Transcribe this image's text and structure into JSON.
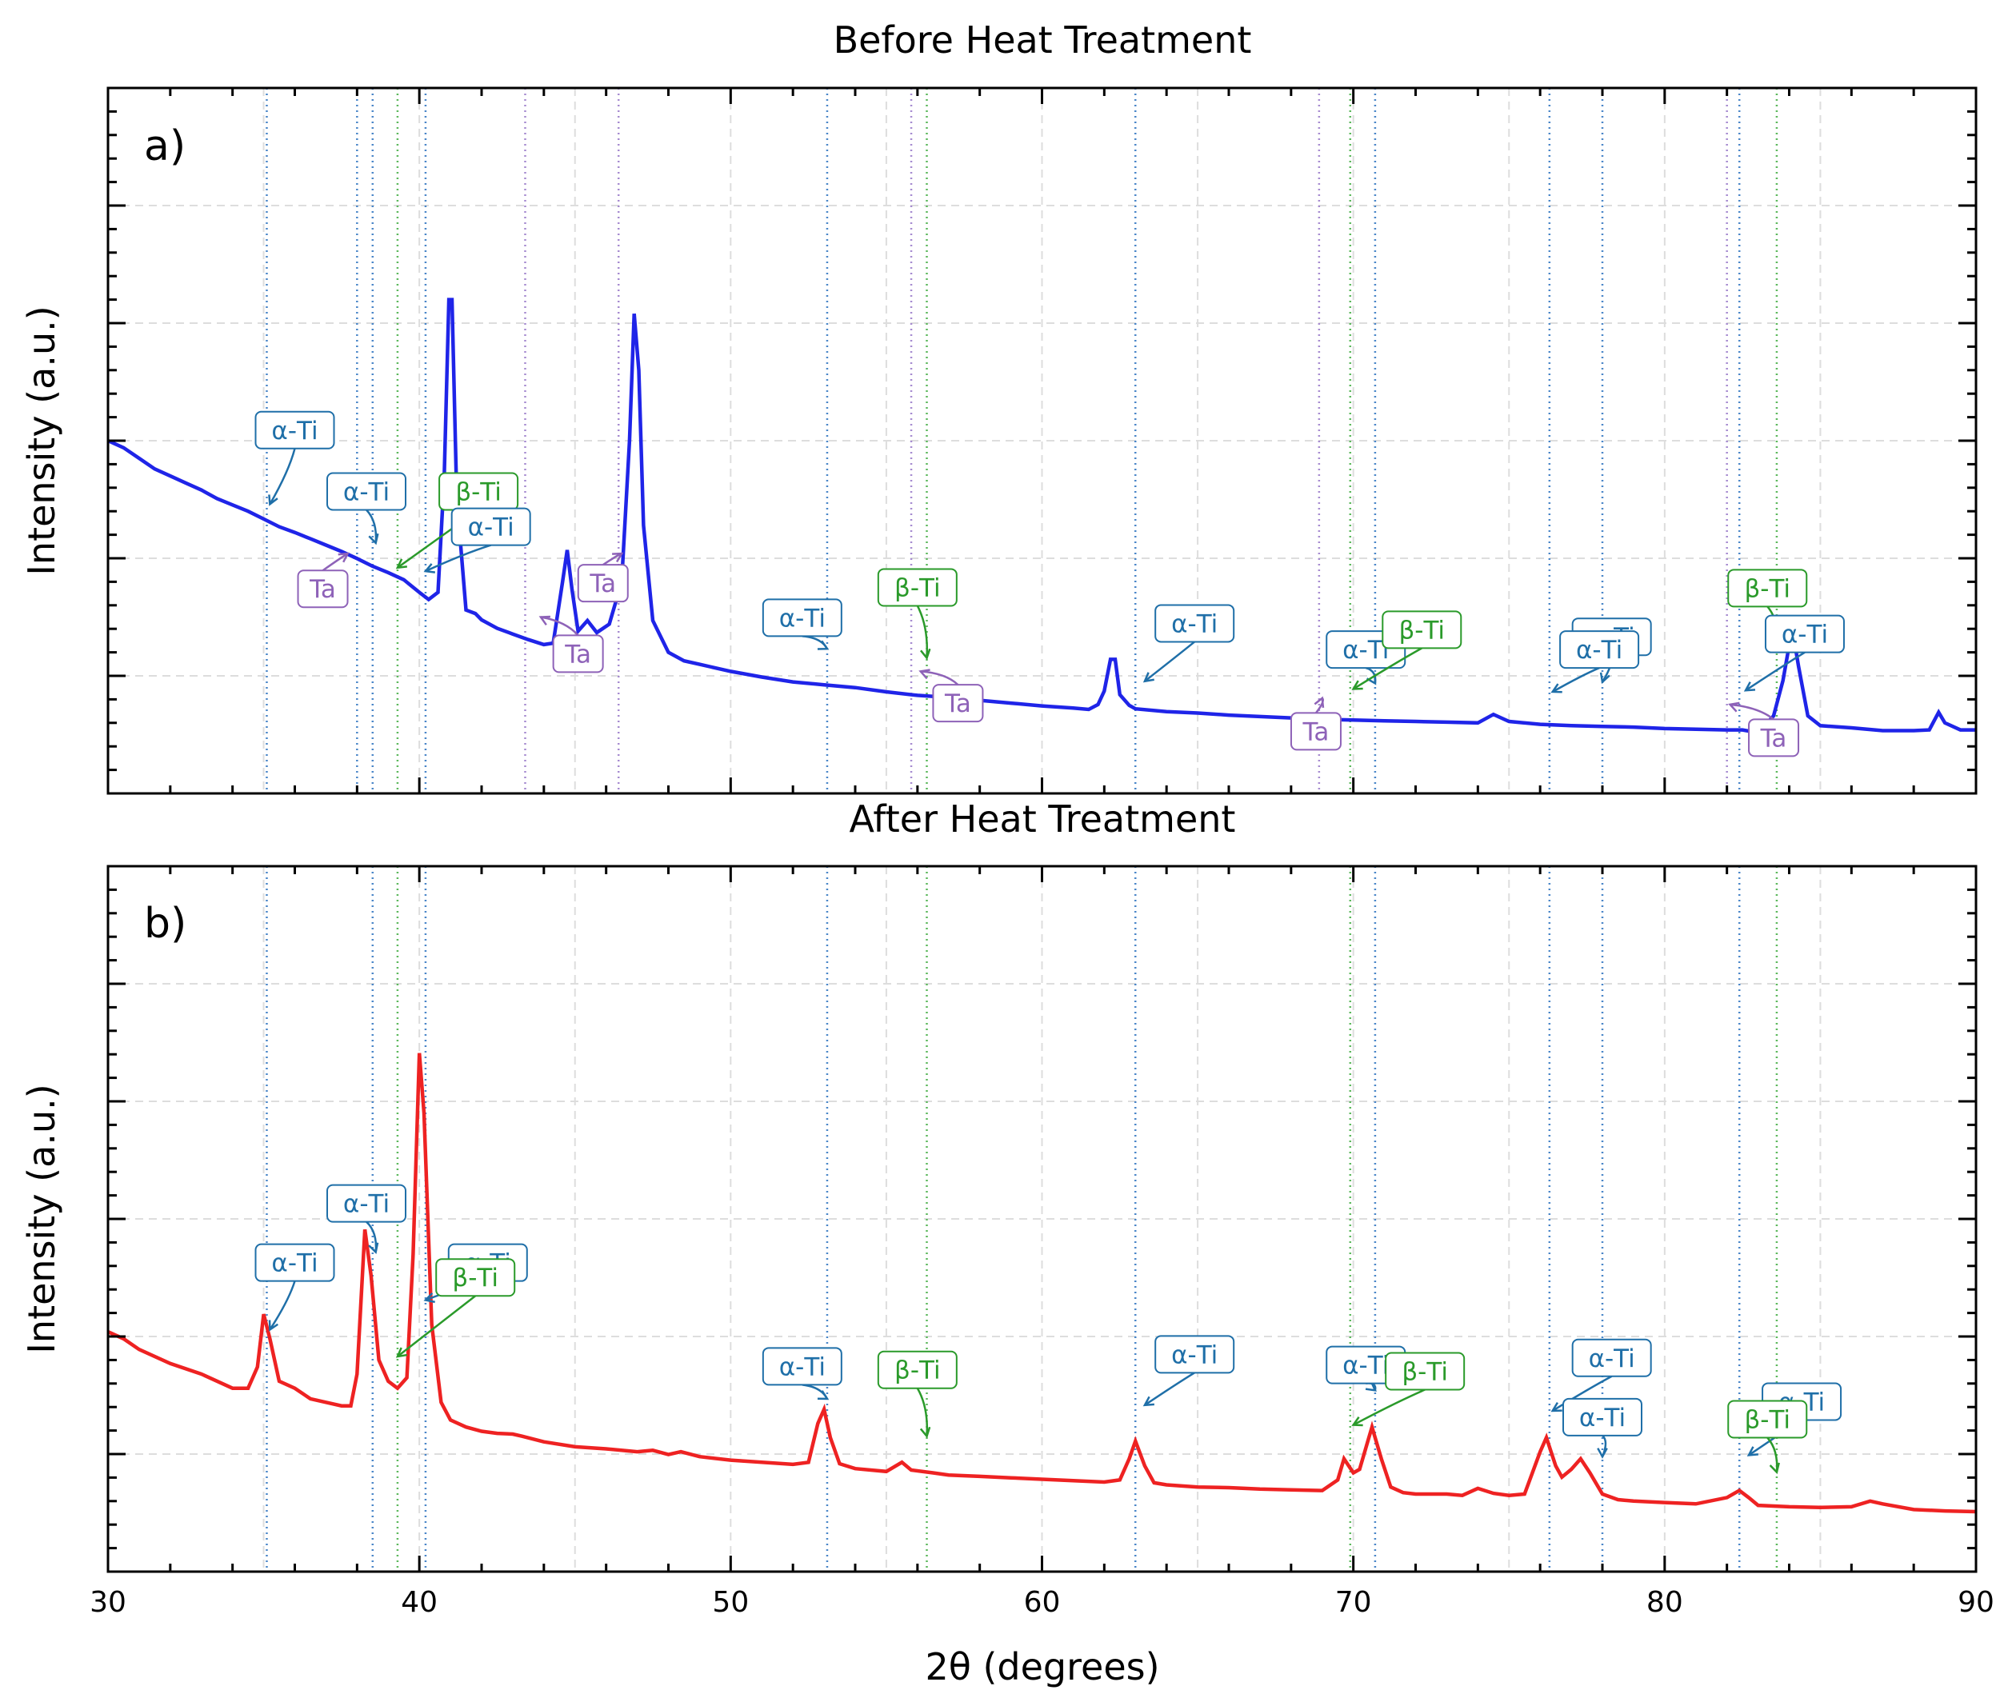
{
  "chart_data": [
    {
      "type": "line",
      "panel_label": "a)",
      "title": "Before Heat Treatment",
      "xlabel": "",
      "ylabel": "Intensity (a.u.)",
      "xlim": [
        30,
        90
      ],
      "ylim": [
        0,
        100
      ],
      "grid": true,
      "show_y_tick_labels": false,
      "show_x_tick_labels": false,
      "line_color": "#1f24e8",
      "series_points": [
        [
          30,
          50
        ],
        [
          30.5,
          49
        ],
        [
          31,
          47.5
        ],
        [
          31.5,
          46
        ],
        [
          32,
          45
        ],
        [
          32.5,
          44
        ],
        [
          33,
          43
        ],
        [
          33.5,
          41.8
        ],
        [
          34,
          40.9
        ],
        [
          34.5,
          40
        ],
        [
          35,
          38.9
        ],
        [
          35.5,
          37.8
        ],
        [
          36,
          37
        ],
        [
          36.5,
          36.1
        ],
        [
          37,
          35.2
        ],
        [
          37.5,
          34.3
        ],
        [
          38,
          33.3
        ],
        [
          38.5,
          32.2
        ],
        [
          39,
          31.3
        ],
        [
          39.5,
          30.3
        ],
        [
          40,
          28.5
        ],
        [
          40.3,
          27.5
        ],
        [
          40.6,
          28.5
        ],
        [
          40.8,
          45
        ],
        [
          40.95,
          70
        ],
        [
          41.05,
          70
        ],
        [
          41.2,
          42
        ],
        [
          41.5,
          26
        ],
        [
          41.8,
          25.5
        ],
        [
          42,
          24.6
        ],
        [
          42.5,
          23.4
        ],
        [
          43,
          22.6
        ],
        [
          43.5,
          21.8
        ],
        [
          44,
          21.1
        ],
        [
          44.3,
          21.3
        ],
        [
          44.6,
          30
        ],
        [
          44.75,
          34.5
        ],
        [
          44.9,
          29
        ],
        [
          45.1,
          23
        ],
        [
          45.4,
          24.5
        ],
        [
          45.7,
          22.8
        ],
        [
          46.1,
          24
        ],
        [
          46.5,
          30
        ],
        [
          46.75,
          50
        ],
        [
          46.9,
          68
        ],
        [
          47.05,
          60
        ],
        [
          47.2,
          38
        ],
        [
          47.5,
          24.5
        ],
        [
          48,
          20
        ],
        [
          48.5,
          18.8
        ],
        [
          49,
          18.3
        ],
        [
          50,
          17.3
        ],
        [
          51,
          16.5
        ],
        [
          52,
          15.8
        ],
        [
          53,
          15.4
        ],
        [
          54,
          15
        ],
        [
          55,
          14.4
        ],
        [
          56,
          13.9
        ],
        [
          57,
          13.6
        ],
        [
          58,
          13.2
        ],
        [
          59,
          12.8
        ],
        [
          60,
          12.4
        ],
        [
          61,
          12.1
        ],
        [
          61.5,
          11.9
        ],
        [
          61.8,
          12.6
        ],
        [
          62,
          14.5
        ],
        [
          62.2,
          19
        ],
        [
          62.35,
          19
        ],
        [
          62.5,
          14
        ],
        [
          62.8,
          12.5
        ],
        [
          63,
          12
        ],
        [
          64,
          11.6
        ],
        [
          65,
          11.4
        ],
        [
          66,
          11.1
        ],
        [
          67,
          10.9
        ],
        [
          68,
          10.7
        ],
        [
          69,
          10.5
        ],
        [
          70,
          10.4
        ],
        [
          71,
          10.3
        ],
        [
          72,
          10.2
        ],
        [
          73,
          10.1
        ],
        [
          74,
          10
        ],
        [
          74.5,
          11.2
        ],
        [
          75,
          10.2
        ],
        [
          76,
          9.8
        ],
        [
          77,
          9.6
        ],
        [
          78,
          9.5
        ],
        [
          79,
          9.4
        ],
        [
          80,
          9.2
        ],
        [
          81,
          9.1
        ],
        [
          82,
          9
        ],
        [
          82.5,
          9
        ],
        [
          83,
          8.6
        ],
        [
          83.5,
          11
        ],
        [
          83.8,
          16
        ],
        [
          84,
          21
        ],
        [
          84.15,
          22
        ],
        [
          84.3,
          18
        ],
        [
          84.6,
          11
        ],
        [
          85,
          9.6
        ],
        [
          86,
          9.3
        ],
        [
          87,
          8.9
        ],
        [
          88,
          8.9
        ],
        [
          88.5,
          9
        ],
        [
          88.8,
          11.5
        ],
        [
          89,
          10
        ],
        [
          89.5,
          9
        ],
        [
          90,
          9
        ]
      ],
      "ref_lines": [
        {
          "x": 35.1,
          "phase": "α-Ti"
        },
        {
          "x": 38.0,
          "phase": "α-Ti"
        },
        {
          "x": 38.5,
          "phase": "α-Ti"
        },
        {
          "x": 40.2,
          "phase": "α-Ti"
        },
        {
          "x": 53.1,
          "phase": "α-Ti"
        },
        {
          "x": 63.0,
          "phase": "α-Ti"
        },
        {
          "x": 70.7,
          "phase": "α-Ti"
        },
        {
          "x": 76.3,
          "phase": "α-Ti"
        },
        {
          "x": 78.0,
          "phase": "α-Ti"
        },
        {
          "x": 82.4,
          "phase": "α-Ti"
        },
        {
          "x": 39.3,
          "phase": "β-Ti"
        },
        {
          "x": 56.3,
          "phase": "β-Ti"
        },
        {
          "x": 69.9,
          "phase": "β-Ti"
        },
        {
          "x": 83.6,
          "phase": "β-Ti"
        },
        {
          "x": 43.4,
          "phase": "Ta"
        },
        {
          "x": 46.4,
          "phase": "Ta"
        },
        {
          "x": 55.8,
          "phase": "Ta"
        },
        {
          "x": 68.9,
          "phase": "Ta"
        },
        {
          "x": 82.0,
          "phase": "Ta"
        }
      ],
      "annotations": [
        {
          "text": "α-Ti",
          "phase": "α-Ti",
          "tx": 36.0,
          "ty": 51.5,
          "ax": 35.2,
          "ay": 41
        },
        {
          "text": "α-Ti",
          "phase": "α-Ti",
          "tx": 38.3,
          "ty": 42.8,
          "ax": 38.6,
          "ay": 35.5
        },
        {
          "text": "β-Ti",
          "phase": "β-Ti",
          "tx": 41.9,
          "ty": 42.8,
          "ax": 39.3,
          "ay": 32
        },
        {
          "text": "α-Ti",
          "phase": "α-Ti",
          "tx": 42.3,
          "ty": 37.8,
          "ax": 40.2,
          "ay": 31.5
        },
        {
          "text": "Ta",
          "phase": "Ta",
          "tx": 36.9,
          "ty": 29,
          "ax": 37.7,
          "ay": 34
        },
        {
          "text": "Ta",
          "phase": "Ta",
          "tx": 45.1,
          "ty": 19.8,
          "ax": 43.9,
          "ay": 25
        },
        {
          "text": "Ta",
          "phase": "Ta",
          "tx": 45.9,
          "ty": 29.8,
          "ax": 46.5,
          "ay": 34
        },
        {
          "text": "α-Ti",
          "phase": "α-Ti",
          "tx": 52.3,
          "ty": 24.9,
          "ax": 53.1,
          "ay": 20.5
        },
        {
          "text": "β-Ti",
          "phase": "β-Ti",
          "tx": 56.0,
          "ty": 29.2,
          "ax": 56.3,
          "ay": 19.2
        },
        {
          "text": "Ta",
          "phase": "Ta",
          "tx": 57.3,
          "ty": 12.8,
          "ax": 56.1,
          "ay": 17.3
        },
        {
          "text": "α-Ti",
          "phase": "α-Ti",
          "tx": 64.9,
          "ty": 24.1,
          "ax": 63.3,
          "ay": 15.9
        },
        {
          "text": "α-Ti",
          "phase": "α-Ti",
          "tx": 70.4,
          "ty": 20.4,
          "ax": 70.7,
          "ay": 15.6
        },
        {
          "text": "β-Ti",
          "phase": "β-Ti",
          "tx": 72.2,
          "ty": 23.2,
          "ax": 70.0,
          "ay": 14.8
        },
        {
          "text": "Ta",
          "phase": "Ta",
          "tx": 68.8,
          "ty": 8.8,
          "ax": 69.0,
          "ay": 13.5
        },
        {
          "text": "α-Ti",
          "phase": "α-Ti",
          "tx": 78.3,
          "ty": 22.2,
          "ax": 78.0,
          "ay": 15.8
        },
        {
          "text": "α-Ti",
          "phase": "α-Ti",
          "tx": 77.9,
          "ty": 20.4,
          "ax": 76.4,
          "ay": 14.4
        },
        {
          "text": "β-Ti",
          "phase": "β-Ti",
          "tx": 83.3,
          "ty": 29.1,
          "ax": 83.6,
          "ay": 21.5
        },
        {
          "text": "α-Ti",
          "phase": "α-Ti",
          "tx": 84.5,
          "ty": 22.6,
          "ax": 82.6,
          "ay": 14.6
        },
        {
          "text": "Ta",
          "phase": "Ta",
          "tx": 83.5,
          "ty": 7.9,
          "ax": 82.1,
          "ay": 12.6
        }
      ]
    },
    {
      "type": "line",
      "panel_label": "b)",
      "title": "After Heat Treatment",
      "xlabel": "2θ (degrees)",
      "ylabel": "Intensity (a.u.)",
      "xlim": [
        30,
        90
      ],
      "ylim": [
        0,
        100
      ],
      "grid": true,
      "show_y_tick_labels": false,
      "show_x_tick_labels": true,
      "x_ticks": [
        "30",
        "40",
        "50",
        "60",
        "70",
        "80",
        "90"
      ],
      "line_color": "#ee2222",
      "series_points": [
        [
          30,
          34
        ],
        [
          30.5,
          33
        ],
        [
          31,
          31.5
        ],
        [
          32,
          29.5
        ],
        [
          33,
          28
        ],
        [
          34,
          26
        ],
        [
          34.5,
          26
        ],
        [
          34.8,
          29
        ],
        [
          35,
          36.5
        ],
        [
          35.2,
          33
        ],
        [
          35.5,
          27
        ],
        [
          36,
          26
        ],
        [
          36.5,
          24.5
        ],
        [
          37,
          24
        ],
        [
          37.5,
          23.5
        ],
        [
          37.8,
          23.5
        ],
        [
          38,
          28
        ],
        [
          38.25,
          48.5
        ],
        [
          38.45,
          42
        ],
        [
          38.7,
          30
        ],
        [
          39,
          27
        ],
        [
          39.3,
          26
        ],
        [
          39.6,
          27.5
        ],
        [
          39.8,
          45
        ],
        [
          40,
          73.5
        ],
        [
          40.15,
          65
        ],
        [
          40.4,
          35
        ],
        [
          40.7,
          24
        ],
        [
          41,
          21.5
        ],
        [
          41.5,
          20.5
        ],
        [
          42,
          19.9
        ],
        [
          42.5,
          19.6
        ],
        [
          43,
          19.5
        ],
        [
          43.3,
          19.2
        ],
        [
          44,
          18.4
        ],
        [
          45,
          17.7
        ],
        [
          46,
          17.4
        ],
        [
          47,
          17
        ],
        [
          47.5,
          17.2
        ],
        [
          48,
          16.6
        ],
        [
          48.4,
          17
        ],
        [
          49,
          16.3
        ],
        [
          50,
          15.8
        ],
        [
          51,
          15.5
        ],
        [
          52,
          15.2
        ],
        [
          52.5,
          15.5
        ],
        [
          52.8,
          21
        ],
        [
          53,
          23
        ],
        [
          53.2,
          19
        ],
        [
          53.5,
          15.3
        ],
        [
          54,
          14.6
        ],
        [
          55,
          14.2
        ],
        [
          55.5,
          15.5
        ],
        [
          55.8,
          14.4
        ],
        [
          56.5,
          14
        ],
        [
          57,
          13.7
        ],
        [
          58,
          13.5
        ],
        [
          59,
          13.3
        ],
        [
          60,
          13.1
        ],
        [
          61,
          12.9
        ],
        [
          62,
          12.7
        ],
        [
          62.5,
          13
        ],
        [
          62.8,
          16
        ],
        [
          63,
          18.5
        ],
        [
          63.3,
          15
        ],
        [
          63.6,
          12.6
        ],
        [
          64,
          12.3
        ],
        [
          65,
          12
        ],
        [
          66,
          11.9
        ],
        [
          67,
          11.7
        ],
        [
          68,
          11.6
        ],
        [
          69,
          11.5
        ],
        [
          69.5,
          13
        ],
        [
          69.7,
          16
        ],
        [
          70,
          14
        ],
        [
          70.2,
          14.5
        ],
        [
          70.5,
          19
        ],
        [
          70.6,
          20.5
        ],
        [
          70.9,
          16
        ],
        [
          71.2,
          12
        ],
        [
          71.6,
          11.2
        ],
        [
          72,
          11
        ],
        [
          73,
          11
        ],
        [
          73.5,
          10.8
        ],
        [
          74,
          11.8
        ],
        [
          74.5,
          11.1
        ],
        [
          75,
          10.8
        ],
        [
          75.5,
          11
        ],
        [
          76,
          17
        ],
        [
          76.2,
          19
        ],
        [
          76.5,
          15
        ],
        [
          76.7,
          13.4
        ],
        [
          77,
          14.5
        ],
        [
          77.3,
          16
        ],
        [
          77.6,
          14
        ],
        [
          78,
          11
        ],
        [
          78.5,
          10.2
        ],
        [
          79,
          10
        ],
        [
          80,
          9.8
        ],
        [
          81,
          9.6
        ],
        [
          82,
          10.5
        ],
        [
          82.4,
          11.5
        ],
        [
          82.7,
          10.5
        ],
        [
          83,
          9.4
        ],
        [
          84,
          9.2
        ],
        [
          85,
          9.1
        ],
        [
          86,
          9.2
        ],
        [
          86.6,
          10
        ],
        [
          87,
          9.6
        ],
        [
          88,
          8.8
        ],
        [
          89,
          8.6
        ],
        [
          90,
          8.5
        ]
      ],
      "ref_lines": [
        {
          "x": 35.1,
          "phase": "α-Ti"
        },
        {
          "x": 38.5,
          "phase": "α-Ti"
        },
        {
          "x": 40.2,
          "phase": "α-Ti"
        },
        {
          "x": 53.1,
          "phase": "α-Ti"
        },
        {
          "x": 63.0,
          "phase": "α-Ti"
        },
        {
          "x": 70.7,
          "phase": "α-Ti"
        },
        {
          "x": 76.3,
          "phase": "α-Ti"
        },
        {
          "x": 78.0,
          "phase": "α-Ti"
        },
        {
          "x": 82.4,
          "phase": "α-Ti"
        },
        {
          "x": 39.3,
          "phase": "β-Ti"
        },
        {
          "x": 56.3,
          "phase": "β-Ti"
        },
        {
          "x": 69.9,
          "phase": "β-Ti"
        },
        {
          "x": 83.6,
          "phase": "β-Ti"
        }
      ],
      "annotations": [
        {
          "text": "α-Ti",
          "phase": "α-Ti",
          "tx": 36.0,
          "ty": 43.8,
          "ax": 35.2,
          "ay": 34.3
        },
        {
          "text": "α-Ti",
          "phase": "α-Ti",
          "tx": 38.3,
          "ty": 52.2,
          "ax": 38.6,
          "ay": 45.3
        },
        {
          "text": "α-Ti",
          "phase": "α-Ti",
          "tx": 42.2,
          "ty": 43.8,
          "ax": 40.2,
          "ay": 38.5
        },
        {
          "text": "β-Ti",
          "phase": "β-Ti",
          "tx": 41.8,
          "ty": 41.7,
          "ax": 39.3,
          "ay": 30.5
        },
        {
          "text": "α-Ti",
          "phase": "α-Ti",
          "tx": 52.3,
          "ty": 29.1,
          "ax": 53.1,
          "ay": 24.5
        },
        {
          "text": "β-Ti",
          "phase": "β-Ti",
          "tx": 56.0,
          "ty": 28.6,
          "ax": 56.3,
          "ay": 19.2
        },
        {
          "text": "α-Ti",
          "phase": "α-Ti",
          "tx": 64.9,
          "ty": 30.8,
          "ax": 63.3,
          "ay": 23.6
        },
        {
          "text": "α-Ti",
          "phase": "α-Ti",
          "tx": 70.4,
          "ty": 29.3,
          "ax": 70.7,
          "ay": 25.7
        },
        {
          "text": "β-Ti",
          "phase": "β-Ti",
          "tx": 72.3,
          "ty": 28.4,
          "ax": 70.0,
          "ay": 20.8
        },
        {
          "text": "α-Ti",
          "phase": "α-Ti",
          "tx": 78.3,
          "ty": 30.3,
          "ax": 76.4,
          "ay": 22.8
        },
        {
          "text": "α-Ti",
          "phase": "α-Ti",
          "tx": 78.0,
          "ty": 21.9,
          "ax": 78.0,
          "ay": 16.3
        },
        {
          "text": "α-Ti",
          "phase": "α-Ti",
          "tx": 84.4,
          "ty": 24.1,
          "ax": 82.7,
          "ay": 16.5
        },
        {
          "text": "β-Ti",
          "phase": "β-Ti",
          "tx": 83.3,
          "ty": 21.6,
          "ax": 83.6,
          "ay": 14.1
        }
      ]
    }
  ],
  "phase_colors": {
    "α-Ti": "#1f6fa8",
    "β-Ti": "#2a9a2a",
    "Ta": "#8e62b8"
  },
  "ref_line_colors": {
    "α-Ti": "#4a86c8",
    "β-Ti": "#5cb85c",
    "Ta": "#a68bd0"
  }
}
